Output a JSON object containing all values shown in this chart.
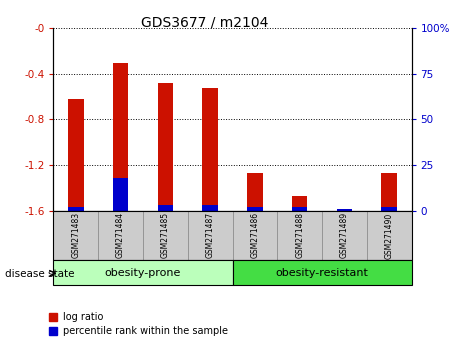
{
  "title": "GDS3677 / m2104",
  "samples": [
    "GSM271483",
    "GSM271484",
    "GSM271485",
    "GSM271487",
    "GSM271486",
    "GSM271488",
    "GSM271489",
    "GSM271490"
  ],
  "log_ratio": [
    -0.62,
    -0.3,
    -0.48,
    -0.52,
    -1.27,
    -1.47,
    -1.6,
    -1.27
  ],
  "percentile_rank": [
    2.0,
    18.0,
    3.0,
    3.0,
    2.0,
    2.0,
    1.0,
    2.0
  ],
  "ylim_left": [
    -1.6,
    0.0
  ],
  "ylim_right": [
    0,
    100
  ],
  "yticks_left": [
    0.0,
    -0.4,
    -0.8,
    -1.2,
    -1.6
  ],
  "ytick_labels_left": [
    "-0",
    "-0.4",
    "-0.8",
    "-1.2",
    "-1.6"
  ],
  "yticks_right": [
    0,
    25,
    50,
    75,
    100
  ],
  "ytick_labels_right": [
    "0",
    "25",
    "50",
    "75",
    "100%"
  ],
  "group1_label": "obesity-prone",
  "group2_label": "obesity-resistant",
  "group1_color": "#bbffbb",
  "group2_color": "#44dd44",
  "bar_color_red": "#cc1100",
  "bar_color_blue": "#0000cc",
  "bar_width": 0.35,
  "disease_state_label": "disease state",
  "legend_red_label": "log ratio",
  "legend_blue_label": "percentile rank within the sample",
  "title_fontsize": 10,
  "tick_fontsize": 7.5,
  "label_fontsize": 7,
  "sample_fontsize": 5.5,
  "group_fontsize": 8
}
